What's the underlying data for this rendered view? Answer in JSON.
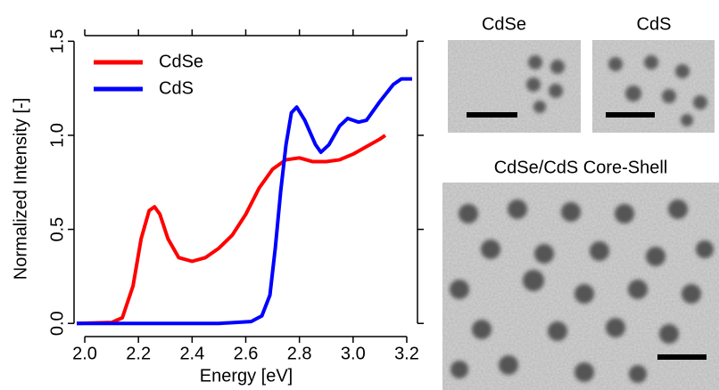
{
  "chart_data": {
    "type": "line",
    "xlabel": "Energy [eV]",
    "ylabel": "Normalized Intensity [-]",
    "xlim": [
      1.96,
      3.24
    ],
    "ylim": [
      -0.07,
      1.53
    ],
    "xticks": [
      {
        "value": 2,
        "label": "2.0"
      },
      2.2,
      2.4,
      2.6,
      2.8,
      {
        "value": 3,
        "label": "3.0"
      },
      3.2
    ],
    "yticks": [
      {
        "value": 0,
        "label": "0.0"
      },
      0.5,
      {
        "value": 1,
        "label": "1.0"
      },
      1.5
    ],
    "legend": "top-left",
    "series": [
      {
        "name": "CdSe",
        "color": "#ff0000",
        "x": [
          1.97,
          2.1,
          2.14,
          2.18,
          2.21,
          2.24,
          2.26,
          2.28,
          2.31,
          2.35,
          2.4,
          2.45,
          2.5,
          2.55,
          2.6,
          2.65,
          2.7,
          2.75,
          2.8,
          2.85,
          2.9,
          2.95,
          3.0,
          3.05,
          3.1,
          3.12
        ],
        "values": [
          0,
          0.005,
          0.03,
          0.2,
          0.45,
          0.6,
          0.62,
          0.58,
          0.45,
          0.35,
          0.33,
          0.35,
          0.4,
          0.47,
          0.58,
          0.72,
          0.82,
          0.87,
          0.88,
          0.86,
          0.86,
          0.87,
          0.9,
          0.94,
          0.98,
          1.0
        ]
      },
      {
        "name": "CdS",
        "color": "#0000ff",
        "x": [
          1.97,
          2.3,
          2.5,
          2.62,
          2.66,
          2.69,
          2.71,
          2.73,
          2.75,
          2.77,
          2.79,
          2.82,
          2.86,
          2.88,
          2.91,
          2.95,
          2.98,
          3.02,
          3.05,
          3.1,
          3.15,
          3.18,
          3.22
        ],
        "values": [
          0,
          0,
          0,
          0.01,
          0.04,
          0.15,
          0.4,
          0.7,
          0.95,
          1.12,
          1.15,
          1.08,
          0.95,
          0.91,
          0.95,
          1.05,
          1.09,
          1.07,
          1.08,
          1.18,
          1.27,
          1.3,
          1.3
        ]
      }
    ]
  },
  "panels": [
    {
      "label": "CdSe"
    },
    {
      "label": "CdS"
    },
    {
      "label": "CdSe/CdS Core-Shell"
    }
  ]
}
